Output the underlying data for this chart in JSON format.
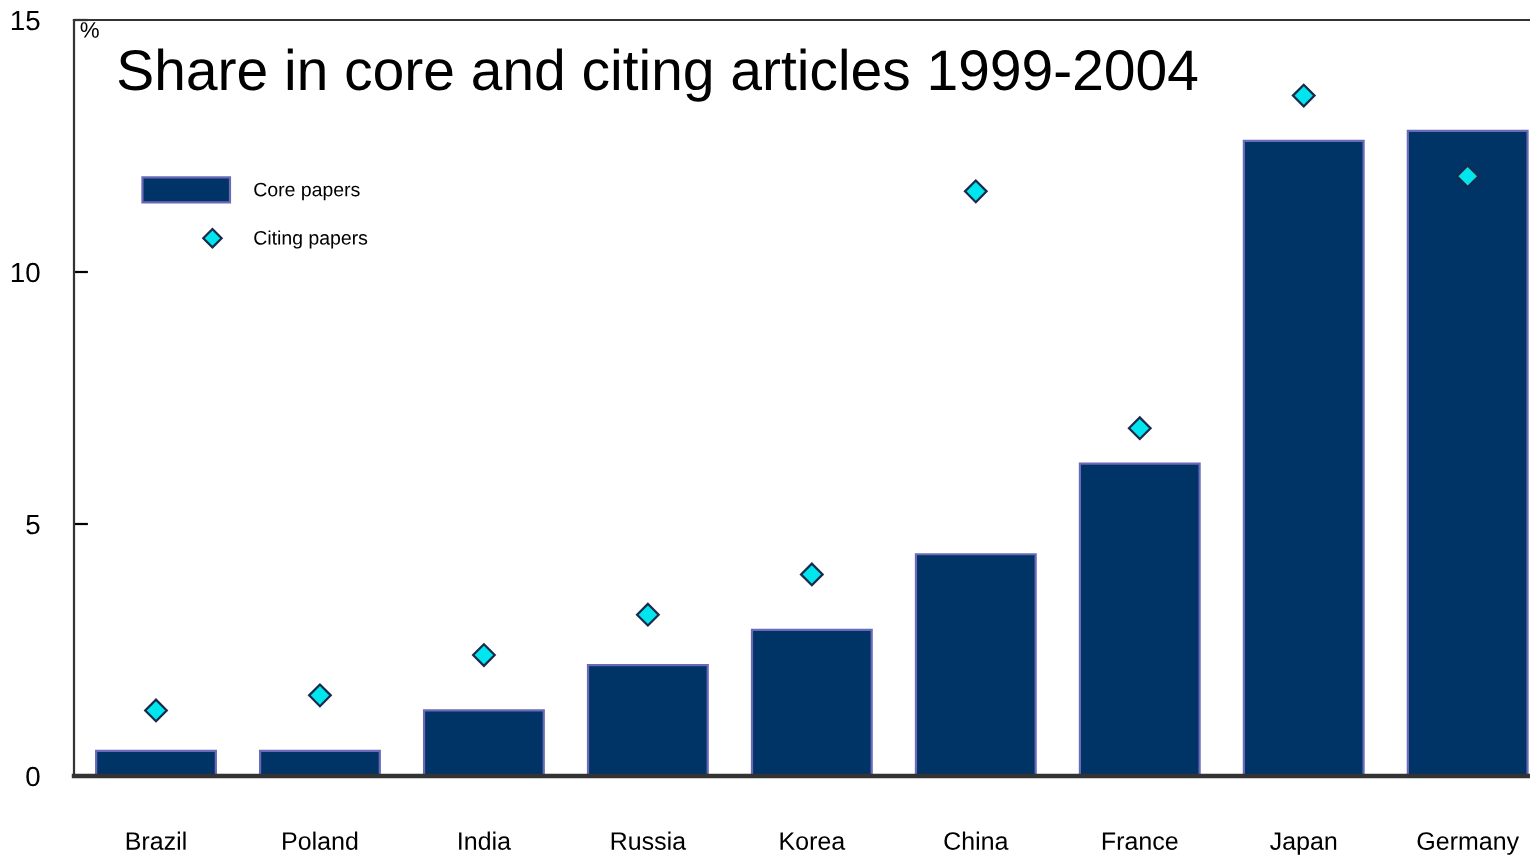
{
  "chart_data": {
    "type": "bar",
    "title": "Share in core and citing articles 1999-2004",
    "ylabel": "%",
    "categories": [
      "Brazil",
      "Poland",
      "India",
      "Russia",
      "Korea",
      "China",
      "France",
      "Japan",
      "Germany"
    ],
    "series": [
      {
        "name": "Core papers",
        "type": "bar",
        "color": "#003366",
        "values": [
          0.5,
          0.5,
          1.3,
          2.2,
          2.9,
          4.4,
          6.2,
          12.6,
          12.8
        ]
      },
      {
        "name": "Citing papers",
        "type": "scatter",
        "color": "#00e5ee",
        "marker": "diamond",
        "values": [
          1.3,
          1.6,
          2.4,
          3.2,
          4.0,
          11.6,
          6.9,
          13.5,
          11.9
        ]
      }
    ],
    "ylim": [
      0,
      15
    ],
    "yticks": [
      0,
      5,
      10,
      15
    ],
    "grid": false,
    "legend": "top left"
  }
}
